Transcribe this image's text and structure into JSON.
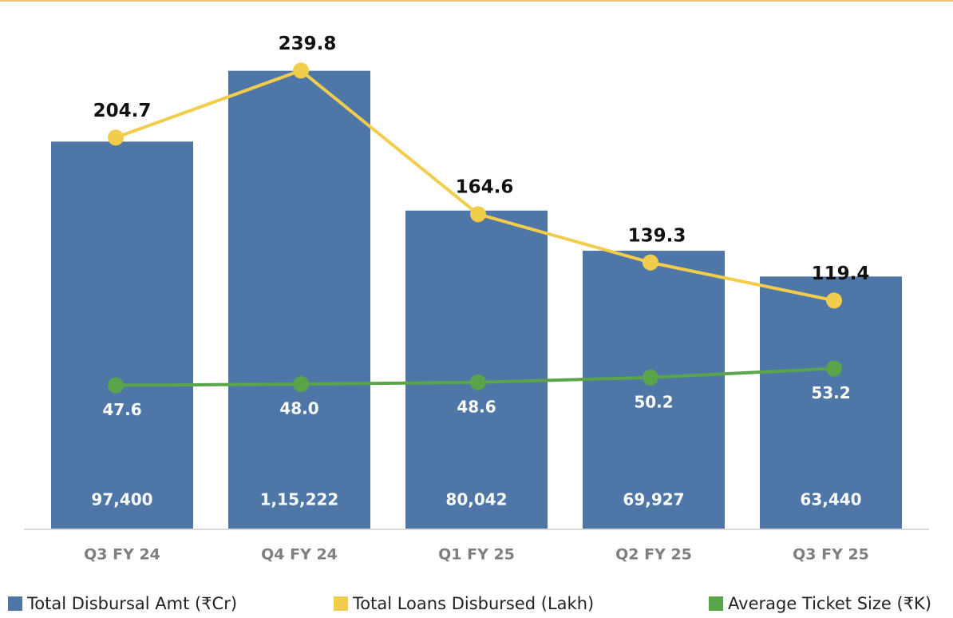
{
  "chart_data": {
    "type": "bar",
    "categories": [
      "Q3 FY 24",
      "Q4 FY 24",
      "Q1 FY 25",
      "Q2 FY 25",
      "Q3 FY 25"
    ],
    "ylim": [
      0,
      125000
    ],
    "y2lim": [
      0,
      260
    ],
    "y3lim": [
      0,
      165
    ],
    "series": [
      {
        "name": "Total Disbursal Amt (₹Cr)",
        "type": "bar",
        "color": "#4e77a8",
        "values": [
          97400,
          115222,
          80042,
          69927,
          63440
        ],
        "value_labels": [
          "97,400",
          "1,15,222",
          "80,042",
          "69,927",
          "63,440"
        ]
      },
      {
        "name": "Total Loans Disbursed (Lakh)",
        "type": "line",
        "axis": "y2",
        "color": "#f2cd4b",
        "values": [
          204.7,
          239.8,
          164.6,
          139.3,
          119.4
        ]
      },
      {
        "name": "Average Ticket Size (₹K)",
        "type": "line",
        "axis": "y3",
        "color": "#5aa54a",
        "values": [
          47.6,
          48.0,
          48.6,
          50.2,
          53.2
        ],
        "value_labels": [
          "47.6",
          "48.0",
          "48.6",
          "50.2",
          "53.2"
        ]
      }
    ]
  }
}
